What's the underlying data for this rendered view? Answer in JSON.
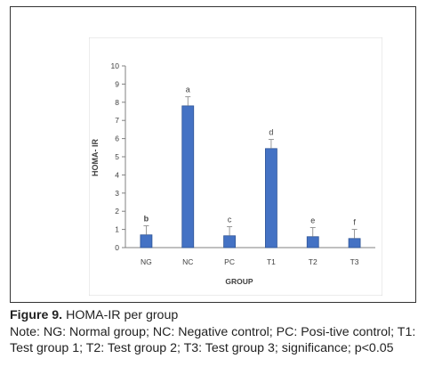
{
  "chart_data": {
    "type": "bar",
    "categories": [
      "NG",
      "NC",
      "PC",
      "T1",
      "T2",
      "T3"
    ],
    "values": [
      0.7,
      7.8,
      0.65,
      5.45,
      0.6,
      0.5
    ],
    "errors": [
      0.5,
      0.5,
      0.5,
      0.5,
      0.5,
      0.5
    ],
    "significance_letters": [
      "b",
      "a",
      "c",
      "d",
      "e",
      "f"
    ],
    "xlabel": "GROUP",
    "ylabel": "HOMA- IR",
    "ylim": [
      0,
      10
    ],
    "yticks": [
      0,
      1,
      2,
      3,
      4,
      5,
      6,
      7,
      8,
      9,
      10
    ],
    "grid": false,
    "bar_color": "#4472c4",
    "bar_edge_color": "#2f5597"
  },
  "caption": {
    "figure_label": "Figure 9.",
    "figure_title": " HOMA-IR per group",
    "note": "Note: NG: Normal group; NC: Negative control; PC: Posi-tive control; T1: Test group 1; T2: Test group 2; T3: Test group 3; significance; p<0.05"
  }
}
